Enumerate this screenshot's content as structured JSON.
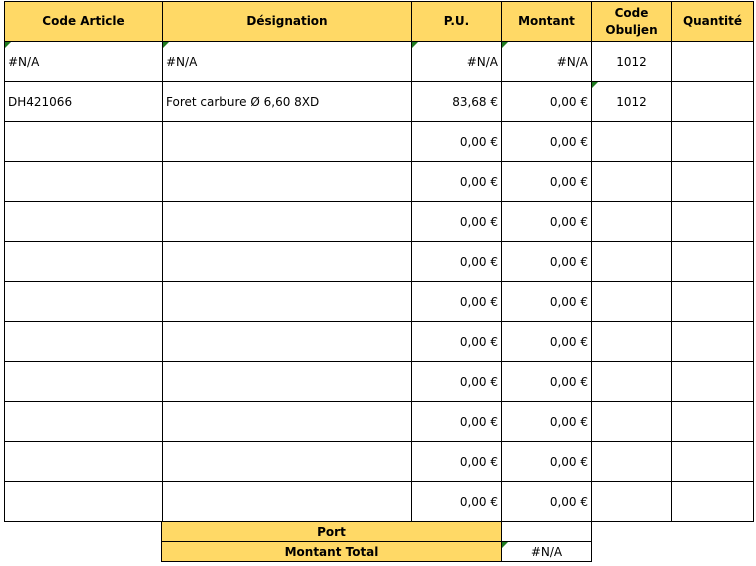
{
  "headers": [
    "Code Article",
    "Désignation",
    "P.U.",
    "Montant",
    "Code Obuljen",
    "Quantité"
  ],
  "rows": [
    {
      "code": "#N/A",
      "designation": "#N/A",
      "pu": "#N/A",
      "montant": "#N/A",
      "obuljen": "1012",
      "quantite": ""
    },
    {
      "code": "DH421066",
      "designation": "Foret  carbure Ø 6,60   8XD",
      "pu": "83,68 €",
      "montant": "0,00 €",
      "obuljen": "1012",
      "quantite": ""
    },
    {
      "code": "",
      "designation": "",
      "pu": "0,00 €",
      "montant": "0,00 €",
      "obuljen": "",
      "quantite": ""
    },
    {
      "code": "",
      "designation": "",
      "pu": "0,00 €",
      "montant": "0,00 €",
      "obuljen": "",
      "quantite": ""
    },
    {
      "code": "",
      "designation": "",
      "pu": "0,00 €",
      "montant": "0,00 €",
      "obuljen": "",
      "quantite": ""
    },
    {
      "code": "",
      "designation": "",
      "pu": "0,00 €",
      "montant": "0,00 €",
      "obuljen": "",
      "quantite": ""
    },
    {
      "code": "",
      "designation": "",
      "pu": "0,00 €",
      "montant": "0,00 €",
      "obuljen": "",
      "quantite": ""
    },
    {
      "code": "",
      "designation": "",
      "pu": "0,00 €",
      "montant": "0,00 €",
      "obuljen": "",
      "quantite": ""
    },
    {
      "code": "",
      "designation": "",
      "pu": "0,00 €",
      "montant": "0,00 €",
      "obuljen": "",
      "quantite": ""
    },
    {
      "code": "",
      "designation": "",
      "pu": "0,00 €",
      "montant": "0,00 €",
      "obuljen": "",
      "quantite": ""
    },
    {
      "code": "",
      "designation": "",
      "pu": "0,00 €",
      "montant": "0,00 €",
      "obuljen": "",
      "quantite": ""
    },
    {
      "code": "",
      "designation": "",
      "pu": "0,00 €",
      "montant": "0,00 €",
      "obuljen": "",
      "quantite": ""
    }
  ],
  "footer": {
    "port_label": "Port",
    "port_value": "",
    "total_label": "Montant Total",
    "total_value": "#N/A"
  },
  "colors": {
    "header_bg": "#FFD966",
    "error_indicator": "#1e7a1e"
  }
}
